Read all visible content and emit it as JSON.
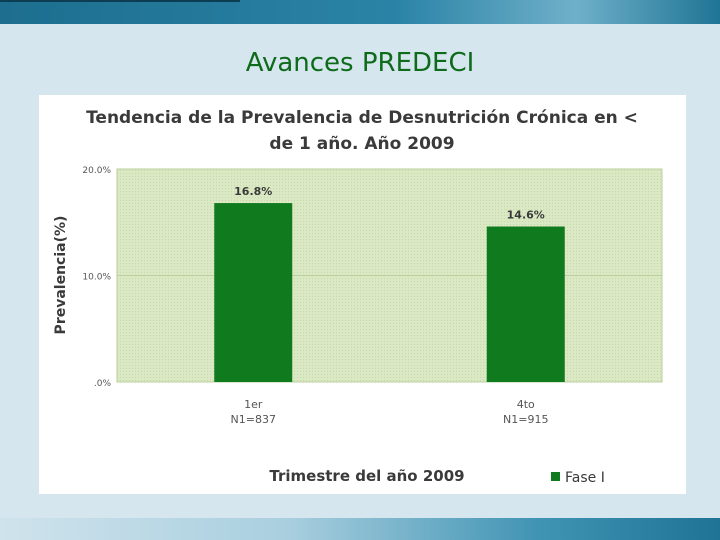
{
  "slide": {
    "title": "Avances PREDECI"
  },
  "colors": {
    "title": "#0d6b1a",
    "bar": "#0f7a1e",
    "plot_bg": "#dbe8c4",
    "grid": "#b9cf9c"
  },
  "chart_data": {
    "type": "bar",
    "title_line1": "Tendencia de la Prevalencia de Desnutrición Crónica en <",
    "title_line2": "de 1 año. Año 2009",
    "xlabel": "Trimestre del año 2009",
    "ylabel": "Prevalencia(%)",
    "categories": [
      {
        "line1": "1er",
        "line2": "N1=837"
      },
      {
        "line1": "4to",
        "line2": "N1=915"
      }
    ],
    "series": [
      {
        "name": "Fase I",
        "values": [
          16.8,
          14.6
        ],
        "labels": [
          "16.8%",
          "14.6%"
        ]
      }
    ],
    "ylim": [
      0,
      20
    ],
    "yticks": [
      {
        "value": 0,
        "label": ".0%"
      },
      {
        "value": 10,
        "label": "10.0%"
      },
      {
        "value": 20,
        "label": "20.0%"
      }
    ],
    "grid": true,
    "legend": "bottom-right"
  }
}
